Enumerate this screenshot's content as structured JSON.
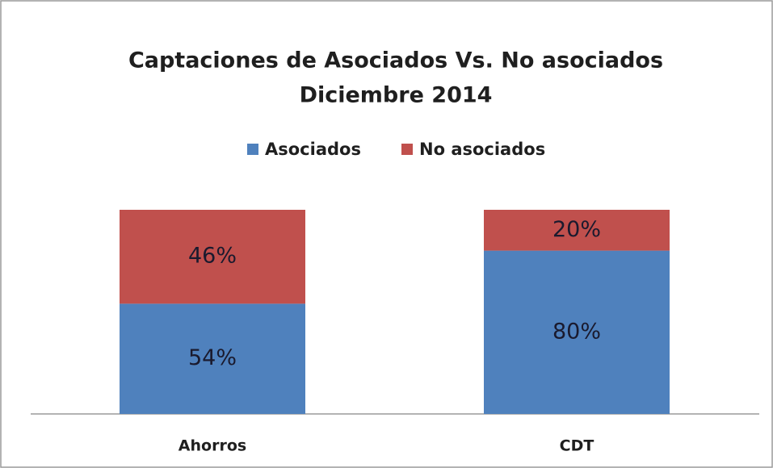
{
  "chart_data": {
    "type": "stacked_bar",
    "title": "Captaciones de Asociados Vs. No asociados",
    "subtitle": "Diciembre 2014",
    "categories": [
      "Ahorros",
      "CDT"
    ],
    "series": [
      {
        "name": "Asociados",
        "color": "#4f81bd",
        "values": [
          54,
          80
        ],
        "value_labels": [
          "54%",
          "80%"
        ]
      },
      {
        "name": "No asociados",
        "color": "#c0504d",
        "values": [
          46,
          20
        ],
        "value_labels": [
          "46%",
          "20%"
        ]
      }
    ],
    "legend": "top"
  }
}
